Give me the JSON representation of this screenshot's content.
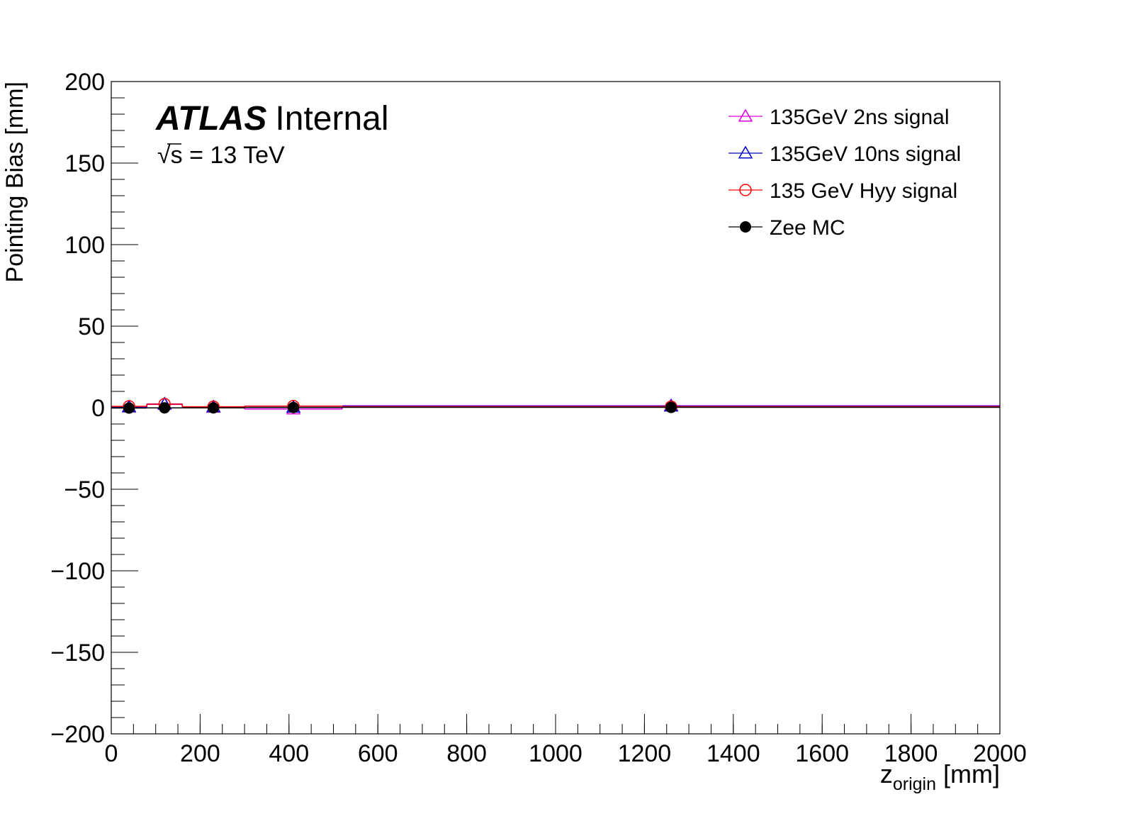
{
  "chart_data": {
    "type": "scatter",
    "xlabel_main": "z",
    "xlabel_sub": "origin",
    "xlabel_unit": "[mm]",
    "ylabel": "Pointing Bias [mm]",
    "xlim": [
      0,
      2000
    ],
    "ylim": [
      -200,
      200
    ],
    "x_ticks": [
      0,
      200,
      400,
      600,
      800,
      1000,
      1200,
      1400,
      1600,
      1800,
      2000
    ],
    "x_tick_labels": [
      "0",
      "200",
      "400",
      "600",
      "800",
      "1000",
      "1200",
      "1400",
      "1600",
      "1800",
      "2000"
    ],
    "y_ticks": [
      -200,
      -150,
      -100,
      -50,
      0,
      50,
      100,
      150,
      200
    ],
    "y_tick_labels": [
      "−200",
      "−150",
      "−100",
      "−50",
      "0",
      "50",
      "100",
      "150",
      "200"
    ],
    "atlas_label": "ATLAS",
    "atlas_status": "Internal",
    "energy_root": "√",
    "energy_label": "s = 13 TeV",
    "legend_position": "top-right",
    "bins": [
      [
        0,
        80
      ],
      [
        80,
        160
      ],
      [
        160,
        300
      ],
      [
        300,
        520
      ],
      [
        520,
        2000
      ]
    ],
    "series": [
      {
        "name": "135GeV 2ns signal",
        "color": "#e000e0",
        "marker": "triangle-open",
        "x": [
          40,
          120,
          230,
          410,
          1260
        ],
        "y": [
          0.3,
          2.0,
          0.2,
          -0.8,
          1.2
        ]
      },
      {
        "name": "135GeV 10ns signal",
        "color": "#0000d0",
        "marker": "triangle-open",
        "x": [
          40,
          120,
          230,
          410,
          1260
        ],
        "y": [
          0.5,
          2.3,
          0.5,
          0.2,
          0.9
        ]
      },
      {
        "name": "135 GeV Hyy signal",
        "color": "#ff0000",
        "marker": "circle-open",
        "x": [
          40,
          120,
          230,
          410,
          1260
        ],
        "y": [
          0.8,
          2.2,
          0.6,
          1.0,
          0.6
        ]
      },
      {
        "name": "Zee MC",
        "color": "#000000",
        "marker": "circle-filled",
        "x": [
          40,
          120,
          230,
          410,
          1260
        ],
        "y": [
          -0.2,
          -0.1,
          -0.1,
          0.1,
          0.2
        ]
      }
    ]
  }
}
